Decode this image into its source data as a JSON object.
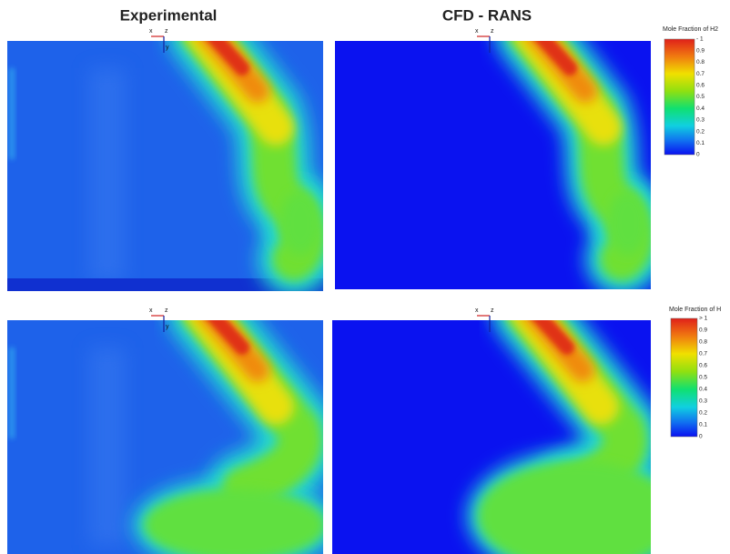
{
  "titles": [
    "Experimental",
    "CFD - RANS"
  ],
  "axis_labels": {
    "x": "x",
    "z": "z",
    "y": "y"
  },
  "colorbars": [
    {
      "title": "Mole Fraction of H2",
      "ticks": [
        "- 1",
        "0.9",
        "0.8",
        "0.7",
        "0.6",
        "0.5",
        "0.4",
        "0.3",
        "0.2",
        "0.1",
        "0"
      ]
    },
    {
      "title": "Mole Fraction of H",
      "ticks": [
        "> 1",
        "0.9",
        "0.8",
        "0.7",
        "0.6",
        "0.5",
        "0.4",
        "0.3",
        "0.2",
        "0.1",
        "0"
      ]
    }
  ]
}
